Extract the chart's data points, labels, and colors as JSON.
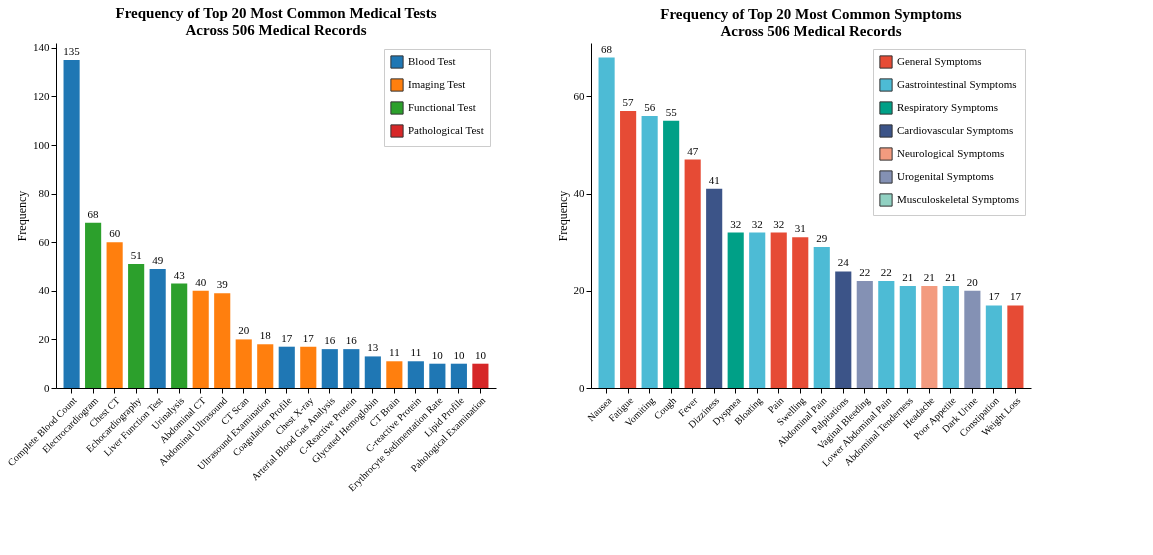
{
  "chart_data": [
    {
      "type": "bar",
      "title": "Frequency of Top 20 Most Common Medical Tests\nAcross 506 Medical Records",
      "ylabel": "Frequency",
      "categories": [
        "Complete Blood Count",
        "Electrocardiogram",
        "Chest CT",
        "Echocardiography",
        "Liver Function Test",
        "Urinalysis",
        "Abdominal CT",
        "Abdominal Ultrasound",
        "CT Scan",
        "Ultrasound Examination",
        "Coagulation Profile",
        "Chest X-ray",
        "Arterial Blood Gas Analysis",
        "C-Reactive Protein",
        "Glycated Hemoglobin",
        "CT Brain",
        "C-reactive Protein",
        "Erythrocyte Sedimentation Rate",
        "Lipid Profile",
        "Pahological Examination"
      ],
      "series": [
        {
          "name": "Blood Test",
          "color": "#1f77b4",
          "values": [
            135,
            null,
            null,
            null,
            49,
            null,
            null,
            null,
            null,
            null,
            17,
            null,
            16,
            16,
            13,
            null,
            11,
            10,
            10,
            null
          ]
        },
        {
          "name": "Imaging Test",
          "color": "#ff7f0e",
          "values": [
            null,
            null,
            60,
            null,
            null,
            null,
            40,
            39,
            20,
            18,
            null,
            17,
            null,
            null,
            null,
            11,
            null,
            null,
            null,
            null
          ]
        },
        {
          "name": "Functional Test",
          "color": "#2ca02c",
          "values": [
            null,
            68,
            null,
            51,
            null,
            43,
            null,
            null,
            null,
            null,
            null,
            null,
            null,
            null,
            null,
            null,
            null,
            null,
            null,
            null
          ]
        },
        {
          "name": "Pathological Test",
          "color": "#d62728",
          "values": [
            null,
            null,
            null,
            null,
            null,
            null,
            null,
            null,
            null,
            null,
            null,
            null,
            null,
            null,
            null,
            null,
            null,
            null,
            null,
            10
          ]
        }
      ],
      "ylim": [
        0,
        142
      ],
      "yticks": [
        0,
        20,
        40,
        60,
        80,
        100,
        120,
        140
      ],
      "data_labels": true,
      "legend": "top right"
    },
    {
      "type": "bar",
      "title": "Frequency of Top 20 Most Common Symptoms\nAcross 506 Medical Records",
      "ylabel": "Frequency",
      "categories": [
        "Nausea",
        "Fatigue",
        "Vomiting",
        "Cough",
        "Fever",
        "Dizziness",
        "Dyspnea",
        "Bloating",
        "Pain",
        "Swelling",
        "Abdominal Pain",
        "Palpitations",
        "Vaginal Bleeding",
        "Lower Abdominal Pain",
        "Abdominal Tenderness",
        "Headache",
        "Poor Appetite",
        "Dark Urine",
        "Constipation",
        "Weight Loss"
      ],
      "series": [
        {
          "name": "General Symptoms",
          "color": "#e64b35",
          "values": [
            null,
            57,
            null,
            null,
            47,
            null,
            null,
            null,
            32,
            31,
            null,
            null,
            null,
            null,
            null,
            null,
            null,
            null,
            null,
            17
          ]
        },
        {
          "name": "Gastrointestinal Symptoms",
          "color": "#4dbbd5",
          "values": [
            68,
            null,
            56,
            null,
            null,
            null,
            null,
            32,
            null,
            null,
            29,
            null,
            null,
            22,
            21,
            null,
            21,
            null,
            17,
            null
          ]
        },
        {
          "name": "Respiratory Symptoms",
          "color": "#00a087",
          "values": [
            null,
            null,
            null,
            55,
            null,
            null,
            32,
            null,
            null,
            null,
            null,
            null,
            null,
            null,
            null,
            null,
            null,
            null,
            null,
            null
          ]
        },
        {
          "name": "Cardiovascular Symptoms",
          "color": "#3c5488",
          "values": [
            null,
            null,
            null,
            null,
            null,
            41,
            null,
            null,
            null,
            null,
            null,
            24,
            null,
            null,
            null,
            null,
            null,
            null,
            null,
            null
          ]
        },
        {
          "name": "Neurological Symptoms",
          "color": "#f39b7f",
          "values": [
            null,
            null,
            null,
            null,
            null,
            null,
            null,
            null,
            null,
            null,
            null,
            null,
            null,
            null,
            null,
            21,
            null,
            null,
            null,
            null
          ]
        },
        {
          "name": "Urogenital Symptoms",
          "color": "#8491b4",
          "values": [
            null,
            null,
            null,
            null,
            null,
            null,
            null,
            null,
            null,
            null,
            null,
            null,
            22,
            null,
            null,
            null,
            null,
            20,
            null,
            null
          ]
        },
        {
          "name": "Musculoskeletal Symptoms",
          "color": "#91d1c2",
          "values": [
            null,
            null,
            null,
            null,
            null,
            null,
            null,
            null,
            null,
            null,
            null,
            null,
            null,
            null,
            null,
            null,
            null,
            null,
            null,
            null
          ]
        }
      ],
      "ylim": [
        0,
        71
      ],
      "yticks": [
        0,
        20,
        40,
        60
      ],
      "data_labels": true,
      "legend": "top right"
    }
  ]
}
